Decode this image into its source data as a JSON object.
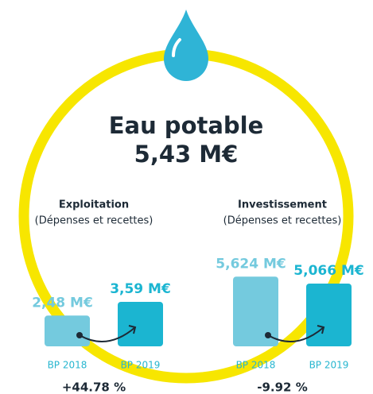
{
  "title": "Eau potable",
  "total": "5,43 M€",
  "panels": [
    {
      "title": "Exploitation",
      "subtitle": "(Dépenses et recettes)",
      "categories": [
        "BP 2018",
        "BP 2019"
      ],
      "values": [
        2.48,
        3.59
      ],
      "value_labels": [
        "2,48 M€",
        "3,59 M€"
      ],
      "colors": [
        "#74cade",
        "#1bb5d1"
      ],
      "change": "+44.78 %"
    },
    {
      "title": "Investissement",
      "subtitle": "(Dépenses et recettes)",
      "categories": [
        "BP 2018",
        "BP 2019"
      ],
      "values": [
        5.624,
        5.066
      ],
      "value_labels": [
        "5,624 M€",
        "5,066 M€"
      ],
      "colors": [
        "#74cade",
        "#1bb5d1"
      ],
      "change": "-9.92 %"
    }
  ]
}
